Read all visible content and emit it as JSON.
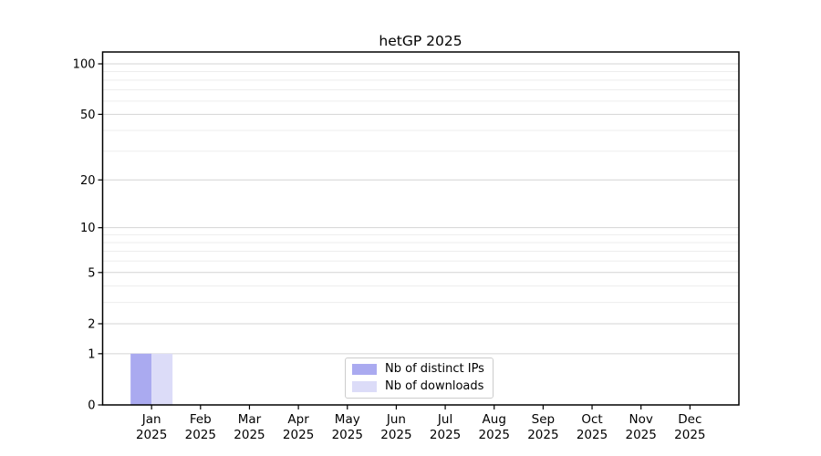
{
  "figure": {
    "background": "#ffffff"
  },
  "chart_data": {
    "type": "bar",
    "title": "hetGP 2025",
    "categories": [
      "Jan",
      "Feb",
      "Mar",
      "Apr",
      "May",
      "Jun",
      "Jul",
      "Aug",
      "Sep",
      "Oct",
      "Nov",
      "Dec"
    ],
    "category_year": "2025",
    "series": [
      {
        "name": "Nb of distinct IPs",
        "color": "#aaaaf0",
        "values": [
          1,
          0,
          0,
          0,
          0,
          0,
          0,
          0,
          0,
          0,
          0,
          0
        ]
      },
      {
        "name": "Nb of downloads",
        "color": "#dcdcf8",
        "values": [
          1,
          0,
          0,
          0,
          0,
          0,
          0,
          0,
          0,
          0,
          0,
          0
        ]
      }
    ],
    "xlabel": "",
    "ylabel": "",
    "yscale": "log1p",
    "ylim": [
      0,
      118
    ],
    "y_major_ticks": [
      0,
      1,
      2,
      5,
      10,
      20,
      50,
      100
    ],
    "y_minor_gridlines": [
      3,
      4,
      6,
      7,
      8,
      9,
      30,
      40,
      60,
      70,
      80,
      90
    ],
    "grid": "horizontal",
    "legend_position": "bottom-center",
    "colors": {
      "grid_major": "#d4d4d4",
      "grid_minor": "#ededed",
      "axis": "#000000",
      "tick_text": "#000000"
    }
  }
}
